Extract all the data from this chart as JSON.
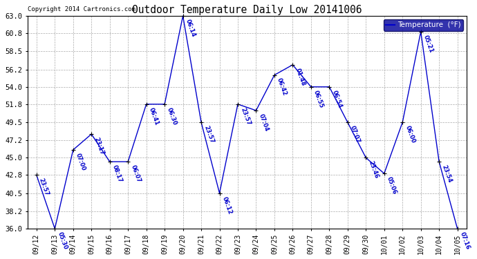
{
  "title": "Outdoor Temperature Daily Low 20141006",
  "copyright": "Copyright 2014 Cartronics.com",
  "legend_label": "Temperature  (°F)",
  "dates": [
    "09/12",
    "09/13",
    "09/14",
    "09/15",
    "09/16",
    "09/17",
    "09/18",
    "09/19",
    "09/20",
    "09/21",
    "09/22",
    "09/23",
    "09/24",
    "09/25",
    "09/26",
    "09/27",
    "09/28",
    "09/29",
    "09/30",
    "10/01",
    "10/02",
    "10/03",
    "10/04",
    "10/05"
  ],
  "temperatures": [
    42.8,
    36.0,
    46.0,
    48.0,
    44.5,
    44.5,
    51.8,
    51.8,
    63.0,
    49.5,
    40.5,
    51.8,
    51.0,
    55.5,
    56.8,
    54.0,
    54.0,
    49.5,
    45.0,
    43.0,
    49.5,
    61.0,
    44.5,
    36.0
  ],
  "time_labels": [
    "23:57",
    "05:30",
    "07:00",
    "23:17",
    "08:17",
    "06:07",
    "06:41",
    "06:30",
    "06:14",
    "23:57",
    "06:12",
    "23:57",
    "07:04",
    "06:42",
    "01:48",
    "06:55",
    "06:54",
    "07:07",
    "23:46",
    "05:06",
    "06:00",
    "05:21",
    "23:54",
    "07:16"
  ],
  "ylim": [
    36.0,
    63.0
  ],
  "yticks": [
    36.0,
    38.2,
    40.5,
    42.8,
    45.0,
    47.2,
    49.5,
    51.8,
    54.0,
    56.2,
    58.5,
    60.8,
    63.0
  ],
  "line_color": "#0000cc",
  "marker_color": "#000000",
  "background_color": "#ffffff",
  "grid_color": "#aaaaaa",
  "title_color": "#000000",
  "label_color": "#0000cc",
  "figwidth": 6.9,
  "figheight": 3.75,
  "dpi": 100
}
